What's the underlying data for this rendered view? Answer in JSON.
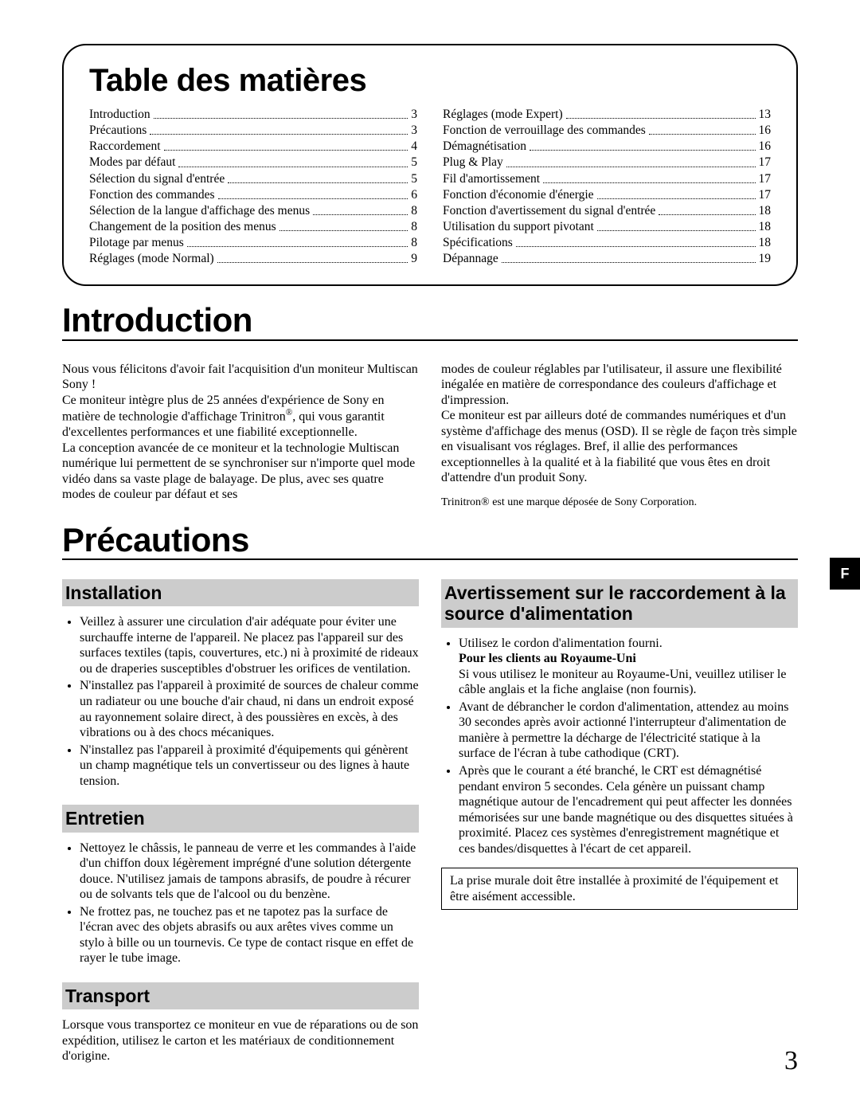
{
  "toc": {
    "title": "Table des matières",
    "left": [
      {
        "label": "Introduction",
        "page": "3"
      },
      {
        "label": "Précautions",
        "page": "3"
      },
      {
        "label": "Raccordement",
        "page": "4"
      },
      {
        "label": "Modes par défaut",
        "page": "5"
      },
      {
        "label": "Sélection du signal d'entrée",
        "page": "5"
      },
      {
        "label": "Fonction des commandes",
        "page": "6"
      },
      {
        "label": "Sélection de la langue d'affichage des menus",
        "page": "8"
      },
      {
        "label": "Changement de la position des menus",
        "page": "8"
      },
      {
        "label": "Pilotage par menus",
        "page": "8"
      },
      {
        "label": "Réglages (mode Normal)",
        "page": "9"
      }
    ],
    "right": [
      {
        "label": "Réglages (mode Expert)",
        "page": "13"
      },
      {
        "label": "Fonction de verrouillage des commandes",
        "page": "16"
      },
      {
        "label": "Démagnétisation",
        "page": "16"
      },
      {
        "label": "Plug & Play",
        "page": "17"
      },
      {
        "label": "Fil d'amortissement",
        "page": "17"
      },
      {
        "label": "Fonction d'économie d'énergie",
        "page": "17"
      },
      {
        "label": "Fonction d'avertissement du signal d'entrée",
        "page": "18"
      },
      {
        "label": "Utilisation du support pivotant",
        "page": "18"
      },
      {
        "label": "Spécifications",
        "page": "18"
      },
      {
        "label": "Dépannage",
        "page": "19"
      }
    ]
  },
  "intro": {
    "heading": "Introduction",
    "left": "Nous vous félicitons d'avoir fait l'acquisition d'un moniteur Multiscan Sony !\nCe moniteur intègre plus de 25 années d'expérience de Sony en matière de technologie d'affichage Trinitron®, qui vous garantit d'excellentes performances et une fiabilité exceptionnelle.\nLa conception avancée de ce moniteur et la technologie Multiscan numérique lui permettent de se synchroniser sur n'importe quel mode vidéo dans sa vaste plage de balayage. De plus, avec ses quatre modes de couleur par défaut et ses",
    "right": "modes de couleur réglables par l'utilisateur, il assure une flexibilité inégalée en matière de correspondance des couleurs d'affichage et d'impression.\nCe moniteur est par ailleurs doté de commandes numériques et d'un système d'affichage des menus (OSD). Il se règle de façon très simple en visualisant vos réglages. Bref, il allie des performances exceptionnelles à la qualité et à la fiabilité que vous êtes en droit d'attendre d'un produit Sony.",
    "footnote": "Trinitron® est une marque déposée de Sony Corporation."
  },
  "prec": {
    "heading": "Précautions",
    "installation": {
      "title": "Installation",
      "items": [
        "Veillez à assurer une circulation d'air adéquate pour éviter une surchauffe interne de l'appareil. Ne placez pas l'appareil sur des surfaces textiles (tapis, couvertures, etc.) ni à proximité de rideaux ou de draperies susceptibles d'obstruer les orifices de ventilation.",
        "N'installez pas l'appareil à proximité de sources de chaleur comme un radiateur ou une bouche d'air chaud, ni dans un endroit exposé au rayonnement solaire direct, à des poussières en excès, à des vibrations ou à des chocs mécaniques.",
        "N'installez pas l'appareil à proximité d'équipements qui génèrent un champ magnétique tels un convertisseur ou des lignes à haute tension."
      ]
    },
    "entretien": {
      "title": "Entretien",
      "items": [
        "Nettoyez le châssis, le panneau de verre et les commandes à l'aide d'un chiffon doux légèrement imprégné d'une solution détergente douce. N'utilisez jamais de tampons abrasifs, de poudre à récurer ou de solvants tels que de l'alcool ou du benzène.",
        "Ne frottez pas, ne touchez pas et ne tapotez pas la surface de l'écran avec des objets abrasifs ou aux arêtes vives comme un stylo à bille ou un tournevis. Ce type de contact risque en effet de rayer le tube image."
      ]
    },
    "transport": {
      "title": "Transport",
      "text": "Lorsque vous transportez ce moniteur en vue de réparations ou de son expédition, utilisez le carton et les matériaux de conditionnement d'origine."
    },
    "power": {
      "title": "Avertissement sur le raccordement à la source d'alimentation",
      "item1_intro": "Utilisez le cordon d'alimentation fourni.",
      "item1_bold": "Pour les clients au Royaume-Uni",
      "item1_rest": "Si vous utilisez le moniteur au Royaume-Uni, veuillez utiliser le câble anglais et la fiche anglaise (non fournis).",
      "item2": "Avant de débrancher le cordon d'alimentation, attendez au moins 30 secondes après avoir actionné l'interrupteur d'alimentation de manière à permettre la décharge de l'électricité statique à la surface de l'écran à tube cathodique (CRT).",
      "item3": "Après que le courant a été branché, le CRT est démagnétisé pendant environ 5 secondes. Cela génère un puissant champ magnétique autour de l'encadrement qui peut affecter les données mémorisées sur une bande magnétique ou des disquettes situées à proximité. Placez ces systèmes d'enregistrement magnétique et ces bandes/disquettes à l'écart de cet appareil.",
      "boxed": "La prise murale doit être installée à proximité de l'équipement et être aisément accessible."
    }
  },
  "sidetab": "F",
  "pagenum": "3",
  "colors": {
    "subhead_bg": "#cccccc",
    "text": "#000000",
    "background": "#ffffff"
  }
}
